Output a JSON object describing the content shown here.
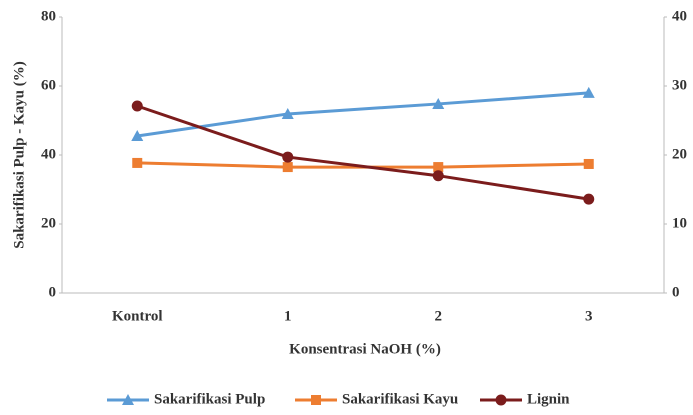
{
  "chart_data": {
    "type": "line",
    "ylabel": "Sakarifikasi Pulp - Kayu (%)",
    "xlabel": "Konsentrasi NaOH (%)",
    "categories": [
      "Kontrol",
      "1",
      "2",
      "3"
    ],
    "series": [
      {
        "name": "Sakarifikasi Pulp",
        "color": "#5b9bd5",
        "marker": "triangle",
        "values": [
          45.5,
          51.9,
          54.8,
          58.0
        ]
      },
      {
        "name": "Sakarifikasi Kayu",
        "color": "#ed7d31",
        "marker": "square",
        "values": [
          37.7,
          36.5,
          36.5,
          37.4
        ]
      },
      {
        "name": "Lignin",
        "color": "#7b1c1c",
        "marker": "circle",
        "axis": "y2",
        "values": [
          27.1,
          19.7,
          17.0,
          13.6
        ]
      }
    ],
    "ylim": [
      0,
      80
    ],
    "yticks": [
      0,
      20,
      40,
      60,
      80
    ],
    "y2lim": [
      0,
      40
    ],
    "y2ticks": [
      0,
      10,
      20,
      30,
      40
    ],
    "legend": "bottom"
  }
}
